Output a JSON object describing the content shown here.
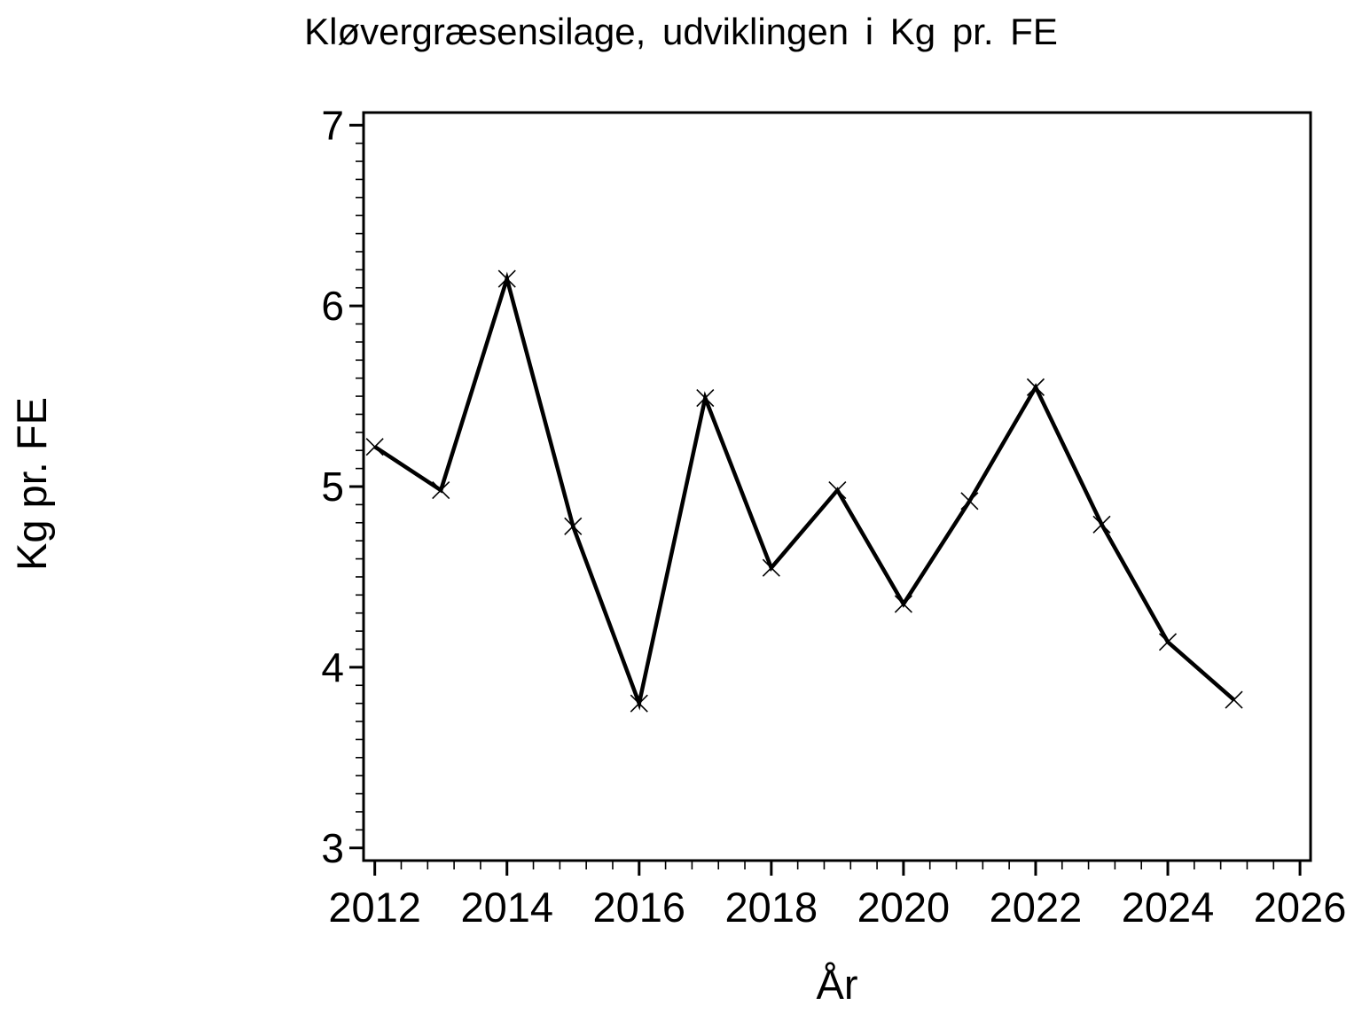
{
  "page": {
    "background": "#ffffff",
    "foreground": "#000000"
  },
  "chart_data": {
    "type": "line",
    "title": "Kløvergræsensilage, udviklingen i Kg pr. FE",
    "xlabel": "År",
    "ylabel": "Kg pr. FE",
    "x": [
      2012,
      2013,
      2014,
      2015,
      2016,
      2017,
      2018,
      2019,
      2020,
      2021,
      2022,
      2023,
      2024,
      2025
    ],
    "values": [
      5.22,
      4.98,
      6.15,
      4.78,
      3.8,
      5.49,
      4.55,
      4.98,
      4.35,
      4.92,
      5.55,
      4.79,
      4.14,
      3.82
    ],
    "xlim": [
      2011.83,
      2026.16
    ],
    "ylim": [
      2.93,
      7.07
    ],
    "x_major_ticks": [
      2012,
      2014,
      2016,
      2018,
      2020,
      2022,
      2024,
      2026
    ],
    "x_minor_step": 0.4,
    "y_major_ticks": [
      7,
      6,
      5,
      4,
      3
    ],
    "y_minor_step": 0.1,
    "grid": false,
    "legend": false,
    "marker": "x",
    "line_color": "#000000",
    "marker_color": "#000000"
  }
}
